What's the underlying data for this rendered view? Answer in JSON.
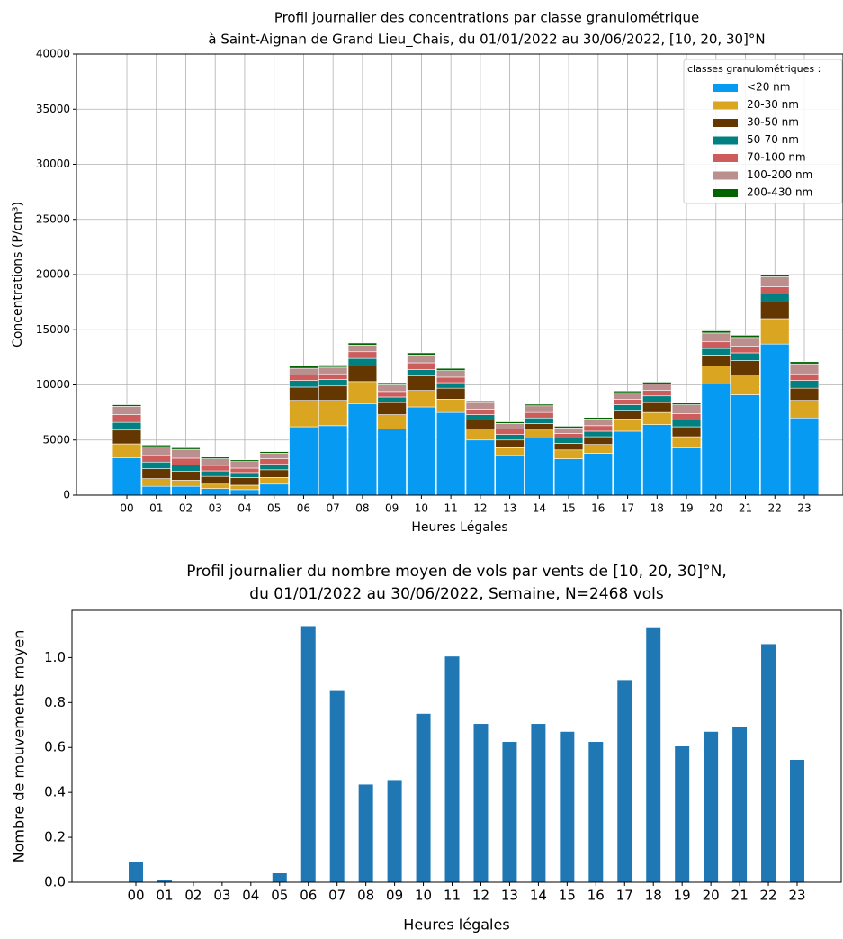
{
  "chart_data": [
    {
      "type": "bar",
      "title": [
        "Profil journalier des concentrations par classe granulométrique",
        "à Saint-Aignan de Grand Lieu_Chais, du 01/01/2022 au 30/06/2022, [10, 20, 30]°N"
      ],
      "x_label": "Heures Légales",
      "y_label": "Concentrations (P/cm³)",
      "legend_title": "classes granulométriques :",
      "legend": "upper right",
      "grid": true,
      "categories": [
        "00",
        "01",
        "02",
        "03",
        "04",
        "05",
        "06",
        "07",
        "08",
        "09",
        "10",
        "11",
        "12",
        "13",
        "14",
        "15",
        "16",
        "17",
        "18",
        "19",
        "20",
        "21",
        "22",
        "23"
      ],
      "ylim": [
        0,
        40000
      ],
      "yticks": [
        0,
        5000,
        10000,
        15000,
        20000,
        25000,
        30000,
        35000,
        40000
      ],
      "series": [
        {
          "name": "<20 nm",
          "color": "#069af3",
          "values": [
            3400,
            800,
            800,
            600,
            500,
            1000,
            6200,
            6300,
            8300,
            6000,
            8000,
            7500,
            5000,
            3600,
            5200,
            3300,
            3800,
            5800,
            6400,
            4300,
            10100,
            9100,
            13700,
            7000
          ]
        },
        {
          "name": "20-30 nm",
          "color": "#daa520",
          "values": [
            1250,
            700,
            550,
            400,
            400,
            600,
            2400,
            2300,
            2000,
            1300,
            1500,
            1200,
            1000,
            700,
            700,
            800,
            800,
            1100,
            1100,
            1000,
            1600,
            1800,
            2300,
            1600
          ]
        },
        {
          "name": "30-50 nm",
          "color": "#653700",
          "values": [
            1250,
            900,
            800,
            700,
            700,
            700,
            1200,
            1300,
            1400,
            1100,
            1300,
            1000,
            800,
            700,
            600,
            600,
            700,
            800,
            900,
            900,
            1000,
            1300,
            1500,
            1100
          ]
        },
        {
          "name": "50-70 nm",
          "color": "#008080",
          "values": [
            700,
            600,
            600,
            500,
            450,
            500,
            600,
            600,
            700,
            500,
            600,
            500,
            500,
            500,
            500,
            500,
            500,
            500,
            600,
            600,
            600,
            700,
            800,
            700
          ]
        },
        {
          "name": "70-100 nm",
          "color": "#cd5c5c",
          "values": [
            700,
            600,
            600,
            500,
            400,
            500,
            500,
            500,
            600,
            500,
            600,
            500,
            500,
            500,
            500,
            400,
            500,
            500,
            500,
            600,
            600,
            600,
            600,
            600
          ]
        },
        {
          "name": "100-200 nm",
          "color": "#bc8f8f",
          "values": [
            750,
            800,
            800,
            600,
            600,
            500,
            600,
            600,
            600,
            600,
            700,
            600,
            600,
            500,
            600,
            500,
            600,
            600,
            600,
            800,
            800,
            800,
            900,
            900
          ]
        },
        {
          "name": "200-430 nm",
          "color": "#006400",
          "values": [
            150,
            150,
            150,
            150,
            150,
            150,
            200,
            200,
            200,
            200,
            200,
            200,
            150,
            150,
            150,
            150,
            150,
            150,
            150,
            150,
            200,
            200,
            200,
            200
          ]
        }
      ]
    },
    {
      "type": "bar",
      "title": [
        "Profil journalier du nombre moyen de vols par vents de [10, 20, 30]°N,",
        "du 01/01/2022 au 30/06/2022, Semaine, N=2468 vols"
      ],
      "x_label": "Heures légales",
      "y_label": "Nombre de mouvements moyen",
      "grid": false,
      "color": "#1f77b4",
      "categories": [
        "00",
        "01",
        "02",
        "03",
        "04",
        "05",
        "06",
        "07",
        "08",
        "09",
        "10",
        "11",
        "12",
        "13",
        "14",
        "15",
        "16",
        "17",
        "18",
        "19",
        "20",
        "21",
        "22",
        "23"
      ],
      "values": [
        0.09,
        0.01,
        0,
        0,
        0,
        0.04,
        1.14,
        0.855,
        0.435,
        0.455,
        0.75,
        1.005,
        0.705,
        0.625,
        0.705,
        0.67,
        0.625,
        0.9,
        1.135,
        0.605,
        0.67,
        0.69,
        1.06,
        0.545
      ],
      "ylim": [
        0,
        1.21
      ],
      "yticks": [
        {
          "value": 0,
          "label": "0.0"
        },
        0.2,
        0.4,
        0.6,
        0.8,
        {
          "value": 1,
          "label": "1.0"
        }
      ]
    }
  ]
}
